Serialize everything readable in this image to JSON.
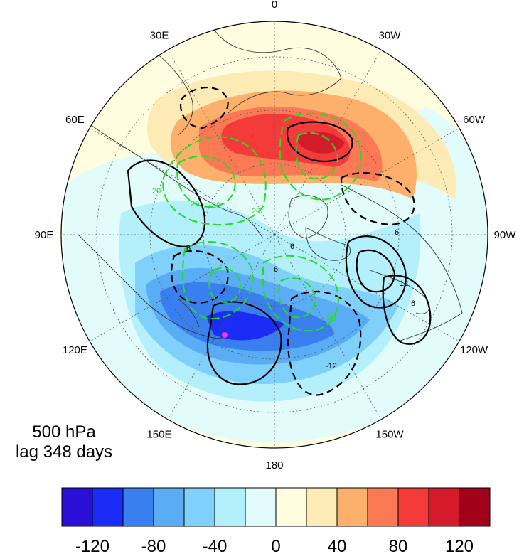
{
  "caption": {
    "level": "500 hPa",
    "lag": "lag 348 days"
  },
  "longitude_labels": [
    "0",
    "30W",
    "60W",
    "90W",
    "120W",
    "150W",
    "180",
    "150E",
    "120E",
    "90E",
    "60E",
    "30E"
  ],
  "contour_labels": {
    "black": [
      "6",
      "6",
      "6",
      "6",
      "12",
      "6",
      "-12"
    ],
    "green": [
      "20",
      "20",
      "20",
      "20",
      "20"
    ]
  },
  "colors": {
    "black_contour": "#000000",
    "green_contour": "#22dd22",
    "marker": "#ff33ff",
    "coast": "#333333",
    "grid": "#555555"
  },
  "colorbar": {
    "fill_colors": [
      "#2a0fd6",
      "#1a2cf5",
      "#3a7ff0",
      "#5aacf5",
      "#7fd0fa",
      "#b4f0fb",
      "#e2fbfb",
      "#fffde0",
      "#fdebb6",
      "#fcb06c",
      "#fb7a55",
      "#f53a3a",
      "#d51a2a",
      "#a0001a"
    ],
    "tick_labels": [
      "-120",
      "-80",
      "-40",
      "0",
      "40",
      "80",
      "120"
    ]
  }
}
